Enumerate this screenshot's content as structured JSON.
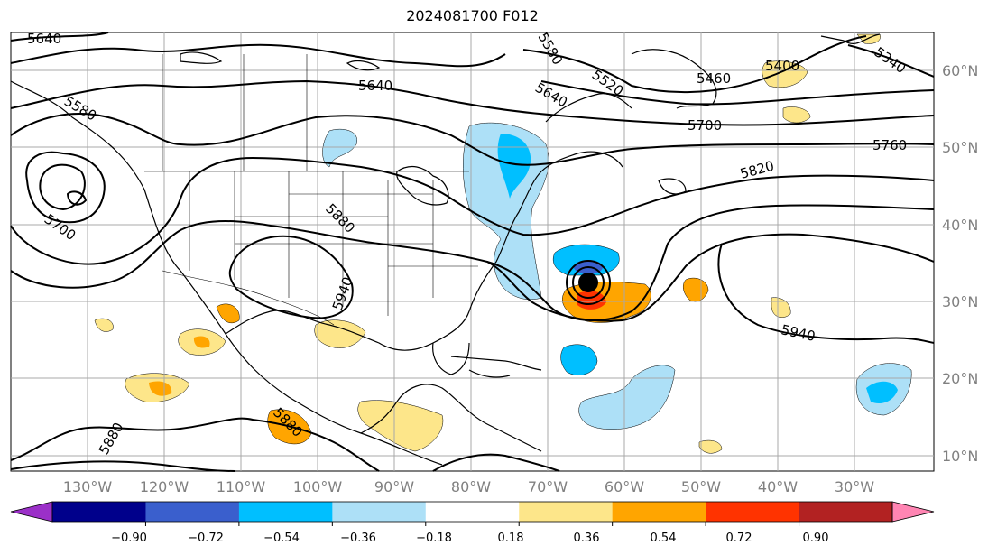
{
  "title": "2024081700 F012",
  "lon_labels": [
    "130°W",
    "120°W",
    "110°W",
    "100°W",
    "90°W",
    "80°W",
    "70°W",
    "60°W",
    "50°W",
    "40°W",
    "30°W"
  ],
  "lat_labels": [
    "60°N",
    "50°N",
    "40°N",
    "30°N",
    "20°N",
    "10°N"
  ],
  "contour_labels": [
    "5640",
    "5640",
    "5520",
    "5460",
    "5400",
    "5340",
    "5640",
    "5700",
    "5760",
    "5820",
    "5700",
    "5880",
    "5940",
    "5940",
    "5880",
    "5880",
    "5580",
    "5580"
  ],
  "colorbar": {
    "ticks": [
      "−0.90",
      "−0.72",
      "−0.54",
      "−0.36",
      "−0.18",
      "0.18",
      "0.36",
      "0.54",
      "0.72",
      "0.90"
    ],
    "colors": [
      "#9b30c8",
      "#00008b",
      "#3a5fcd",
      "#00bfff",
      "#ade0f7",
      "#ffffff",
      "#fde68a",
      "#ffa500",
      "#ff3300",
      "#b22222",
      "#ff85b3"
    ]
  },
  "colors": {
    "land_outline": "#000000",
    "grid": "#a8a8a8",
    "cyclone_center": "#000000"
  }
}
